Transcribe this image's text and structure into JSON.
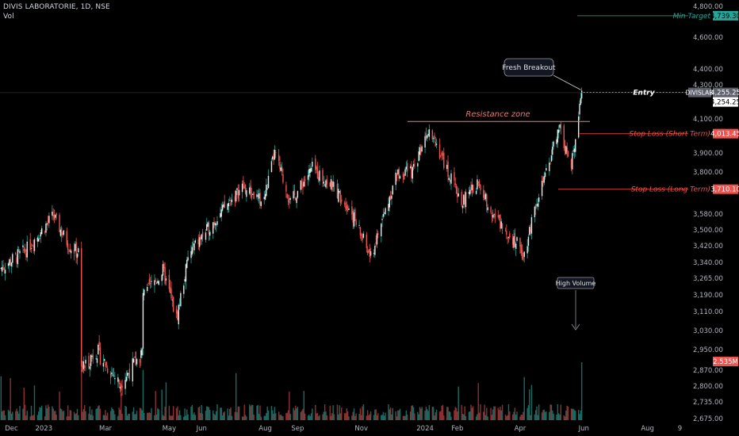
{
  "header": {
    "symbol_line": "DIVIS LABORATORIE, 1D, NSE",
    "indicator": "Vol"
  },
  "colors": {
    "up": "#26a69a",
    "down": "#ef5350",
    "up_vol": "#1e7d74",
    "down_vol": "#a63a3a",
    "green_line": "#2e7d5b",
    "red_line": "#c0392b",
    "grid_text": "#b2b5be"
  },
  "chart_data": {
    "type": "candlestick",
    "price_axis": {
      "range": [
        2660,
        4830
      ],
      "ticks": [
        "4,800.00",
        "4,600.00",
        "4,400.00",
        "4,300.00",
        "4,100.00",
        "3,900.00",
        "3,800.00",
        "3,580.00",
        "3,500.00",
        "3,420.00",
        "3,340.00",
        "3,265.00",
        "3,190.00",
        "3,110.00",
        "3,030.00",
        "2,950.00",
        "2,870.00",
        "2,800.00",
        "2,735.00",
        "2,675.00"
      ]
    },
    "time_axis": {
      "labels": [
        "Dec",
        "2023",
        "Mar",
        "May",
        "Jun",
        "Aug",
        "Sep",
        "Nov",
        "2024",
        "Feb",
        "Apr",
        "Jun",
        "Aug",
        "9"
      ]
    },
    "price_path": [
      {
        "date": "2022-11-20",
        "close": 3310
      },
      {
        "date": "2022-12-15",
        "close": 3400
      },
      {
        "date": "2023-01-10",
        "close": 3570
      },
      {
        "date": "2023-01-25",
        "close": 3420
      },
      {
        "date": "2023-02-05",
        "close": 3380
      },
      {
        "date": "2023-02-06",
        "close": 2870
      },
      {
        "date": "2023-02-20",
        "close": 2950
      },
      {
        "date": "2023-03-15",
        "close": 2810
      },
      {
        "date": "2023-04-05",
        "close": 2940
      },
      {
        "date": "2023-04-06",
        "close": 3180
      },
      {
        "date": "2023-04-25",
        "close": 3300
      },
      {
        "date": "2023-05-08",
        "close": 3080
      },
      {
        "date": "2023-05-20",
        "close": 3380
      },
      {
        "date": "2023-06-15",
        "close": 3560
      },
      {
        "date": "2023-07-10",
        "close": 3720
      },
      {
        "date": "2023-07-30",
        "close": 3640
      },
      {
        "date": "2023-08-10",
        "close": 3900
      },
      {
        "date": "2023-08-25",
        "close": 3640
      },
      {
        "date": "2023-09-15",
        "close": 3820
      },
      {
        "date": "2023-10-05",
        "close": 3720
      },
      {
        "date": "2023-10-20",
        "close": 3620
      },
      {
        "date": "2023-11-10",
        "close": 3360
      },
      {
        "date": "2023-12-05",
        "close": 3790
      },
      {
        "date": "2023-12-20",
        "close": 3800
      },
      {
        "date": "2024-01-05",
        "close": 4060
      },
      {
        "date": "2024-01-18",
        "close": 3860
      },
      {
        "date": "2024-02-05",
        "close": 3640
      },
      {
        "date": "2024-02-20",
        "close": 3740
      },
      {
        "date": "2024-03-10",
        "close": 3550
      },
      {
        "date": "2024-03-25",
        "close": 3460
      },
      {
        "date": "2024-04-05",
        "close": 3380
      },
      {
        "date": "2024-04-15",
        "close": 3620
      },
      {
        "date": "2024-04-28",
        "close": 3820
      },
      {
        "date": "2024-05-08",
        "close": 4060
      },
      {
        "date": "2024-05-20",
        "close": 3820
      },
      {
        "date": "2024-05-30",
        "close": 4280
      }
    ],
    "last_price": "4,254.25",
    "annotations": {
      "resistance": {
        "label": "Resistance zone",
        "price": 4085
      },
      "entry": {
        "label": "Entry",
        "price": 4255.25,
        "price_label": "4,255.25",
        "tag": "DIVISLAB"
      },
      "min_target": {
        "label": "Min Target",
        "price": 4739.3,
        "price_label": "4,739.30"
      },
      "stop_short": {
        "label": "Stop Loss (Short Term)",
        "price": 4013.45,
        "price_label": "4,013.45"
      },
      "stop_long": {
        "label": "Stop Loss (Long Term)",
        "price": 3710.1,
        "price_label": "3,710.10"
      },
      "breakout": {
        "label": "Fresh Breakout"
      },
      "volume": {
        "label": "High Volume",
        "value_label": "2.535M"
      }
    }
  }
}
